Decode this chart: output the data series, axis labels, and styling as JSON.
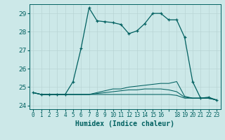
{
  "xlabel": "Humidex (Indice chaleur)",
  "background_color": "#cce8e8",
  "grid_color": "#b8d4d4",
  "line_color": "#006060",
  "xlim": [
    -0.5,
    23.5
  ],
  "ylim": [
    23.8,
    29.5
  ],
  "yticks": [
    24,
    25,
    26,
    27,
    28,
    29
  ],
  "xtick_labels": [
    "0",
    "1",
    "2",
    "3",
    "4",
    "5",
    "6",
    "7",
    "8",
    "9",
    "10",
    "11",
    "12",
    "13",
    "14",
    "15",
    "16",
    "",
    "18",
    "19",
    "20",
    "21",
    "22",
    "23"
  ],
  "line1_x": [
    0,
    1,
    2,
    3,
    4,
    5,
    6,
    7,
    8,
    9,
    10,
    11,
    12,
    13,
    14,
    15,
    16,
    17,
    18,
    19,
    20,
    21,
    22,
    23
  ],
  "line1_y": [
    24.7,
    24.6,
    24.6,
    24.6,
    24.6,
    25.3,
    27.1,
    29.3,
    28.6,
    28.55,
    28.5,
    28.4,
    27.9,
    28.05,
    28.45,
    29.0,
    29.0,
    28.65,
    28.65,
    27.7,
    25.3,
    24.4,
    24.45,
    24.3
  ],
  "line2_y": [
    24.7,
    24.6,
    24.6,
    24.6,
    24.6,
    24.6,
    24.6,
    24.6,
    24.7,
    24.8,
    24.9,
    24.9,
    25.0,
    25.05,
    25.1,
    25.15,
    25.2,
    25.2,
    25.3,
    24.5,
    24.4,
    24.4,
    24.4,
    24.3
  ],
  "line3_y": [
    24.7,
    24.6,
    24.6,
    24.6,
    24.6,
    24.6,
    24.6,
    24.6,
    24.65,
    24.7,
    24.75,
    24.8,
    24.85,
    24.85,
    24.9,
    24.9,
    24.9,
    24.85,
    24.75,
    24.45,
    24.4,
    24.4,
    24.4,
    24.3
  ],
  "line4_y": [
    24.7,
    24.6,
    24.6,
    24.6,
    24.6,
    24.6,
    24.6,
    24.6,
    24.6,
    24.6,
    24.6,
    24.6,
    24.6,
    24.6,
    24.6,
    24.6,
    24.6,
    24.6,
    24.55,
    24.4,
    24.4,
    24.4,
    24.4,
    24.3
  ]
}
